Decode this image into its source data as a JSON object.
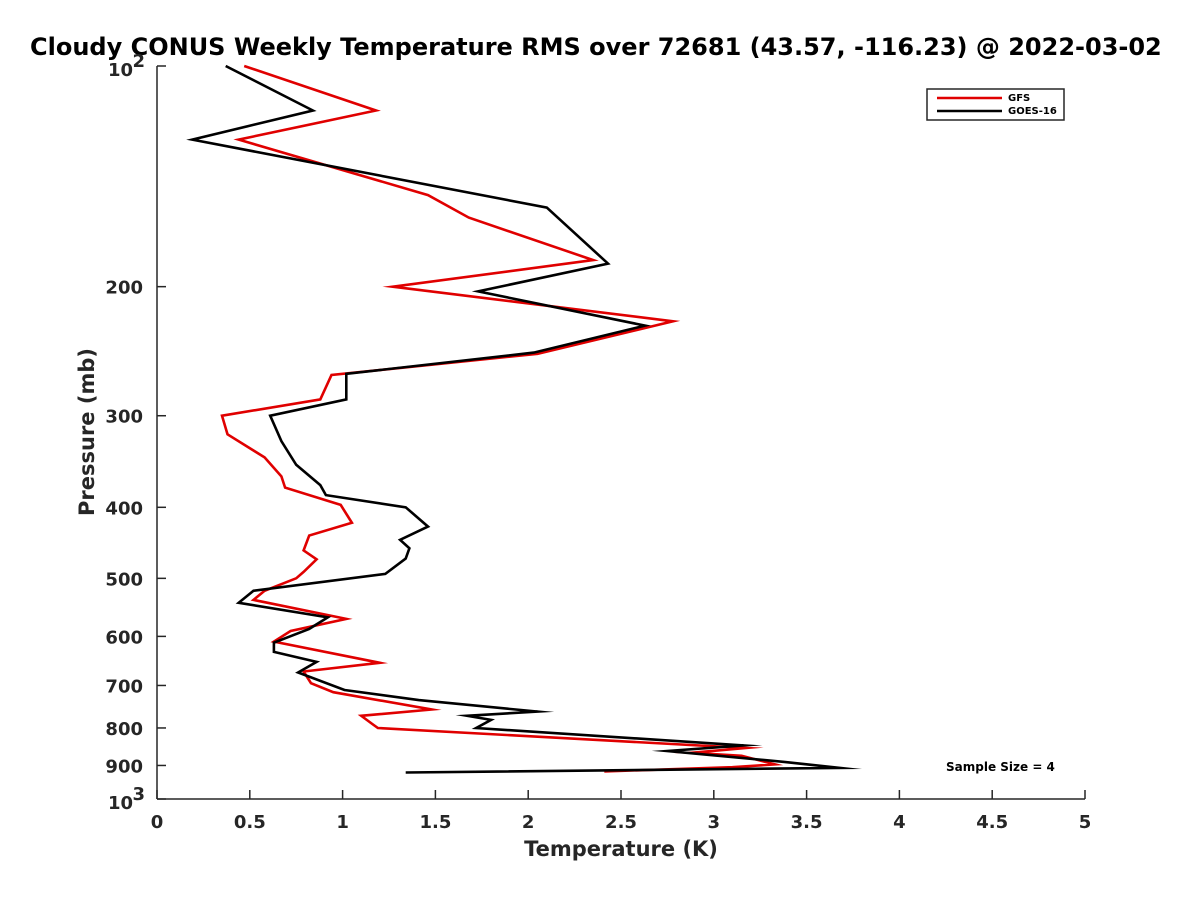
{
  "chart_data": {
    "type": "line",
    "title": "Cloudy CONUS Weekly Temperature RMS over 72681 (43.57, -116.23) @ 2022-03-02",
    "xlabel": "Temperature (K)",
    "ylabel": "Pressure (mb)",
    "xlim": [
      0,
      5
    ],
    "ylim": [
      100,
      1000
    ],
    "y_scale": "log",
    "y_reversed": true,
    "x_ticks": [
      0,
      0.5,
      1,
      1.5,
      2,
      2.5,
      3,
      3.5,
      4,
      4.5,
      5
    ],
    "x_tick_labels": [
      "0",
      "0.5",
      "1",
      "1.5",
      "2",
      "2.5",
      "3",
      "3.5",
      "4",
      "4.5",
      "5"
    ],
    "y_ticks": [
      200,
      300,
      400,
      500,
      600,
      700,
      800,
      900
    ],
    "y_tick_labels": [
      "200",
      "300",
      "400",
      "500",
      "600",
      "700",
      "800",
      "900"
    ],
    "y_power_ticks": [
      {
        "value": 100,
        "base": "10",
        "exp": "2"
      },
      {
        "value": 1000,
        "base": "10",
        "exp": "3"
      }
    ],
    "grid": false,
    "legend_position": "top-right",
    "annotation": "Sample Size = 4",
    "series": [
      {
        "name": "GFS",
        "color": "#e00000",
        "points": [
          [
            0.47,
            100
          ],
          [
            1.18,
            115
          ],
          [
            0.44,
            126
          ],
          [
            1.46,
            150
          ],
          [
            1.68,
            161
          ],
          [
            2.35,
            184
          ],
          [
            1.27,
            200
          ],
          [
            2.78,
            223
          ],
          [
            2.05,
            247
          ],
          [
            0.94,
            264
          ],
          [
            0.88,
            285
          ],
          [
            0.35,
            300
          ],
          [
            0.38,
            318
          ],
          [
            0.58,
            342
          ],
          [
            0.67,
            363
          ],
          [
            0.69,
            376
          ],
          [
            0.99,
            397
          ],
          [
            1.05,
            420
          ],
          [
            0.82,
            437
          ],
          [
            0.79,
            458
          ],
          [
            0.86,
            471
          ],
          [
            0.79,
            490
          ],
          [
            0.75,
            500
          ],
          [
            0.58,
            520
          ],
          [
            0.52,
            535
          ],
          [
            1.02,
            568
          ],
          [
            0.72,
            590
          ],
          [
            0.63,
            610
          ],
          [
            1.2,
            652
          ],
          [
            0.79,
            670
          ],
          [
            0.83,
            695
          ],
          [
            0.95,
            715
          ],
          [
            1.48,
            755
          ],
          [
            1.1,
            770
          ],
          [
            1.16,
            790
          ],
          [
            1.19,
            800
          ],
          [
            3.17,
            852
          ],
          [
            2.88,
            865
          ],
          [
            3.15,
            873
          ],
          [
            3.33,
            897
          ],
          [
            3.1,
            905
          ],
          [
            2.41,
            917
          ]
        ]
      },
      {
        "name": "GOES-16",
        "color": "#000000",
        "points": [
          [
            0.37,
            100
          ],
          [
            0.84,
            115
          ],
          [
            0.19,
            126
          ],
          [
            2.1,
            156
          ],
          [
            2.43,
            186
          ],
          [
            1.73,
            203
          ],
          [
            2.63,
            226
          ],
          [
            2.03,
            246
          ],
          [
            1.02,
            263
          ],
          [
            1.02,
            285
          ],
          [
            0.61,
            300
          ],
          [
            0.67,
            325
          ],
          [
            0.75,
            350
          ],
          [
            0.88,
            373
          ],
          [
            0.91,
            385
          ],
          [
            1.34,
            400
          ],
          [
            1.46,
            425
          ],
          [
            1.31,
            443
          ],
          [
            1.36,
            455
          ],
          [
            1.34,
            470
          ],
          [
            1.23,
            493
          ],
          [
            0.52,
            520
          ],
          [
            0.44,
            540
          ],
          [
            0.92,
            565
          ],
          [
            0.82,
            586
          ],
          [
            0.63,
            612
          ],
          [
            0.63,
            630
          ],
          [
            0.86,
            650
          ],
          [
            0.76,
            672
          ],
          [
            1.01,
            710
          ],
          [
            1.41,
            733
          ],
          [
            2.05,
            760
          ],
          [
            1.67,
            770
          ],
          [
            1.8,
            780
          ],
          [
            1.72,
            800
          ],
          [
            3.16,
            845
          ],
          [
            2.75,
            860
          ],
          [
            3.38,
            890
          ],
          [
            3.68,
            907
          ],
          [
            1.34,
            920
          ]
        ]
      }
    ]
  }
}
